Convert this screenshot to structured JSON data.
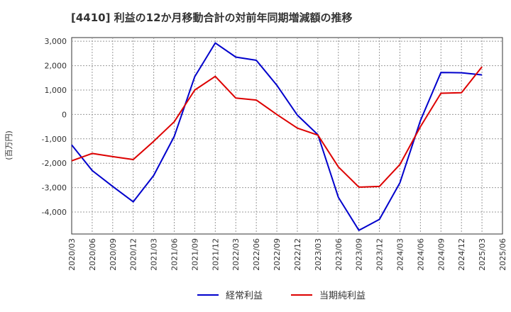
{
  "chart_data": {
    "type": "line",
    "title": "[4410]  利益の12か月移動合計の対前年同期増減額の推移",
    "ylabel": "(百万円)",
    "xlabel": "",
    "ylim": [
      -4900,
      3150
    ],
    "yticks": [
      3000,
      2000,
      1000,
      0,
      -1000,
      -2000,
      -3000,
      -4000
    ],
    "ytick_labels": [
      "3,000",
      "2,000",
      "1,000",
      "0",
      "-1,000",
      "-2,000",
      "-3,000",
      "-4,000"
    ],
    "categories": [
      "2020/03",
      "2020/06",
      "2020/09",
      "2020/12",
      "2021/03",
      "2021/06",
      "2021/09",
      "2021/12",
      "2022/03",
      "2022/06",
      "2022/09",
      "2022/12",
      "2023/03",
      "2023/06",
      "2023/09",
      "2023/12",
      "2024/03",
      "2024/06",
      "2024/09",
      "2024/12",
      "2025/03",
      "2025/06"
    ],
    "grid": true,
    "legend_position": "bottom",
    "series": [
      {
        "name": "経常利益",
        "color": "#0000cc",
        "values": [
          -1250,
          -2300,
          -2950,
          -3580,
          -2500,
          -900,
          1550,
          2930,
          2350,
          2220,
          1200,
          -30,
          -830,
          -3400,
          -4750,
          -4300,
          -2800,
          -250,
          1720,
          1710,
          1620,
          null
        ]
      },
      {
        "name": "当期純利益",
        "color": "#dd0000",
        "values": [
          -1900,
          -1600,
          -1730,
          -1850,
          -1100,
          -300,
          1000,
          1560,
          670,
          590,
          0,
          -560,
          -850,
          -2150,
          -2980,
          -2950,
          -2050,
          -500,
          870,
          890,
          1950,
          null
        ]
      }
    ]
  }
}
